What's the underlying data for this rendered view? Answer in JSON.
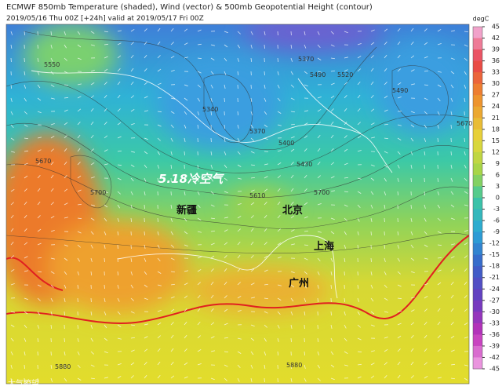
{
  "header": {
    "title": "ECMWF 850mb Temperature (shaded), Wind (vector) & 500mb Geopotential Height (contour)",
    "subtitle": "2019/05/16 Thu 00Z [+24h] valid at 2019/05/17 Fri 00Z"
  },
  "colorbar": {
    "unit": "degC",
    "ticks": [
      45,
      42,
      39,
      36,
      33,
      30,
      27,
      24,
      21,
      18,
      15,
      12,
      9,
      6,
      3,
      0,
      -3,
      -6,
      -9,
      -12,
      -15,
      -18,
      -21,
      -24,
      -27,
      -30,
      -33,
      -36,
      -39,
      -42,
      -45
    ]
  },
  "contour_labels": [
    "5550",
    "5370",
    "5490",
    "5520",
    "5340",
    "5370",
    "5400",
    "5430",
    "5610",
    "5700",
    "5670",
    "5700",
    "5490",
    "5670",
    "5880",
    "5880"
  ],
  "annotations": {
    "event": "5.18冷空气",
    "places": [
      "新疆",
      "北京",
      "上海",
      "广州"
    ]
  },
  "watermark": "大气瞭望"
}
